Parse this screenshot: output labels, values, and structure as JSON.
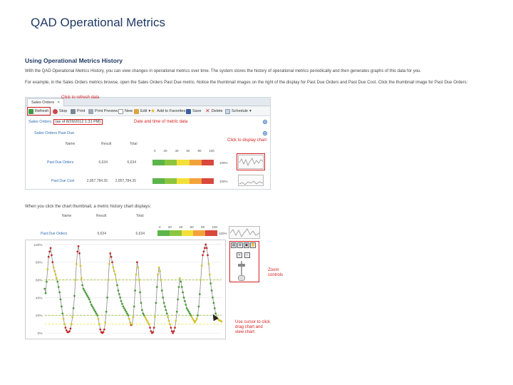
{
  "page": {
    "title": "QAD Operational Metrics"
  },
  "doc": {
    "heading": "Using Operational Metrics History",
    "para1": "With the QAD Operational Metrics History, you can view changes in operational metrics over time. The system stores the history of operational metrics periodically and then generates graphs of this data for you.",
    "para2": "For example, in the Sales Orders metrics browse, open the Sales Orders Past Due metric. Notice the thumbnail images on the right of the display for Past Due Orders and Past Due Cost. Click the thumbnail image for Past Due Orders:",
    "para3": "When you click the chart thumbnail, a metric history chart displays:"
  },
  "screenshot1": {
    "tab_label": "Sales Orders",
    "tab_close": "×",
    "toolbar": {
      "refresh": "Refresh",
      "stop": "Stop",
      "print": "Print",
      "print_preview": "Print Preview",
      "new": "New",
      "edit": "Edit",
      "add_favorites": "Add to Favorites",
      "save": "Save",
      "delete": "Delete",
      "schedule": "Schedule"
    },
    "callout_refresh": "Click to refresh data",
    "breadcrumb_prefix": "Sales Orders",
    "timestamp": "(as of 8/29/2012 1:31 PM)",
    "callout_timestamp": "Date and time of metric data",
    "section_title": "Sales Orders Past Due",
    "callout_chart": "Click to display chart",
    "columns": {
      "name": "Name",
      "result": "Result",
      "total": "Total"
    },
    "scale_ticks": [
      "0",
      "20",
      "40",
      "60",
      "80",
      "100"
    ],
    "rows": [
      {
        "name": "Past Due Orders",
        "result": "6,634",
        "total": "6,634",
        "pct": "100%"
      },
      {
        "name": "Past Due Cost",
        "result": "2,857,784.35",
        "total": "2,857,784.35",
        "pct": "100%"
      }
    ]
  },
  "screenshot2": {
    "columns": {
      "name": "Name",
      "result": "Result",
      "total": "Total"
    },
    "scale_ticks": [
      "0",
      "20",
      "40",
      "60",
      "80",
      "100"
    ],
    "row": {
      "name": "Past Due Orders",
      "result": "6,634",
      "total": "6,634",
      "pct": "100%"
    },
    "callout_zoom": "Zoom controls",
    "callout_drag": "Use cursor to click drag chart and view chart"
  },
  "colors": {
    "title": "#1f3864",
    "callout": "#d62020",
    "link": "#2e6db4",
    "series": "#8a8a8a"
  },
  "chart_data": {
    "type": "line",
    "title": "",
    "xlabel": "",
    "ylabel": "",
    "ylim": [
      0,
      100
    ],
    "yticks": [
      "100%",
      "80%",
      "60%",
      "40%",
      "20%",
      "0%"
    ],
    "grid": true,
    "threshold_lines": [
      {
        "value": 60,
        "color": "#a6c84c"
      },
      {
        "value": 20,
        "color": "#a6c84c"
      },
      {
        "value": 10,
        "color": "#f0e35a"
      }
    ],
    "series": [
      {
        "values": [
          50,
          45,
          58,
          72,
          86,
          92,
          96,
          88,
          80,
          74,
          70,
          66,
          62,
          58,
          52,
          46,
          38,
          30,
          22,
          16,
          10,
          6,
          3,
          1,
          1,
          2,
          5,
          10,
          18,
          28,
          42,
          60,
          78,
          92,
          98,
          90,
          76,
          62,
          54,
          50,
          48,
          46,
          44,
          42,
          40,
          38,
          35,
          32,
          30,
          28,
          26,
          24,
          22,
          20,
          16,
          10,
          4,
          1,
          0,
          1,
          4,
          12,
          24,
          40,
          60,
          78,
          90,
          86,
          80,
          74,
          70,
          66,
          60,
          54,
          48,
          44,
          40,
          36,
          33,
          30,
          28,
          26,
          24,
          22,
          20,
          16,
          12,
          9,
          10,
          18,
          30,
          48,
          66,
          80,
          74,
          60,
          46,
          34,
          26,
          22,
          20,
          18,
          16,
          14,
          12,
          10,
          6,
          2,
          0,
          1,
          6,
          18,
          34,
          52,
          66,
          74,
          70,
          60,
          48,
          40,
          34,
          30,
          26,
          22,
          18,
          14,
          10,
          6,
          2,
          0,
          2,
          6,
          14,
          24,
          38,
          52,
          62,
          58,
          52,
          46,
          40,
          36,
          32,
          28,
          26,
          24,
          22,
          20,
          18,
          16,
          14,
          12,
          14,
          16,
          20,
          30,
          44,
          60,
          76,
          88,
          92,
          96,
          100,
          96,
          88,
          78,
          66,
          56,
          48,
          40,
          34,
          28,
          22,
          18,
          16,
          15,
          14,
          14,
          13
        ]
      }
    ]
  }
}
